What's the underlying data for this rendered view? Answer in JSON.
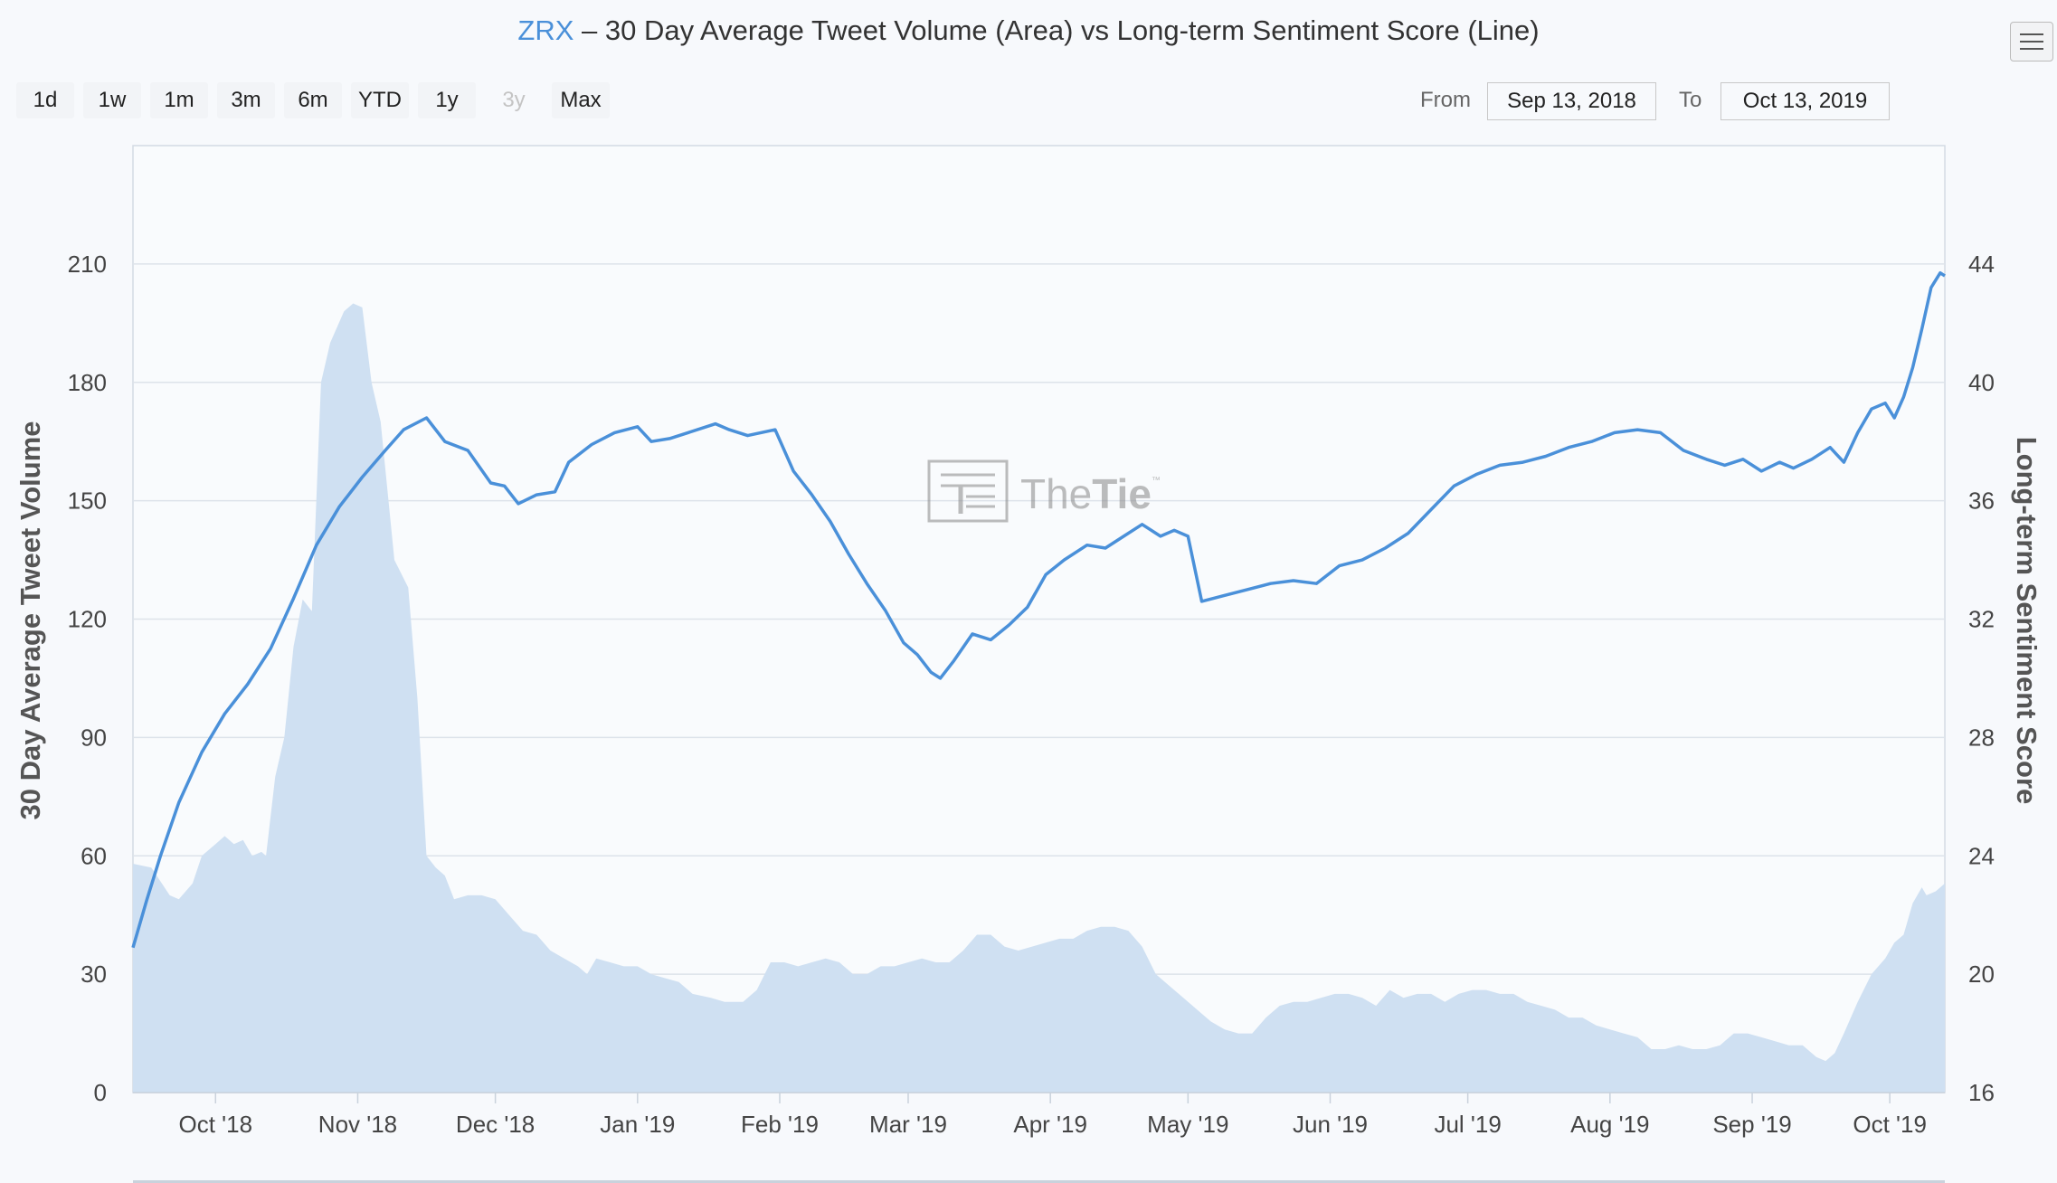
{
  "title": {
    "symbol": "ZRX",
    "rest": " – 30 Day Average Tweet Volume (Area) vs Long-term Sentiment Score (Line)"
  },
  "range_buttons": [
    {
      "label": "1d",
      "enabled": true
    },
    {
      "label": "1w",
      "enabled": true
    },
    {
      "label": "1m",
      "enabled": true
    },
    {
      "label": "3m",
      "enabled": true
    },
    {
      "label": "6m",
      "enabled": true
    },
    {
      "label": "YTD",
      "enabled": true
    },
    {
      "label": "1y",
      "enabled": true
    },
    {
      "label": "3y",
      "enabled": false
    },
    {
      "label": "Max",
      "enabled": true
    }
  ],
  "date_range": {
    "from_label": "From",
    "from_value": "Sep 13, 2018",
    "to_label": "To",
    "to_value": "Oct 13, 2019"
  },
  "menu": {
    "icon": "hamburger-menu-icon"
  },
  "watermark": {
    "text_light": "The",
    "text_bold": "Tie",
    "mark": "™"
  },
  "colors": {
    "line": "#4a90d9",
    "area_fill": "#cfe0f2",
    "grid": "#dde3ea"
  },
  "chart_data": {
    "type": "area+line",
    "x_start": "2018-09-13",
    "x_end": "2019-10-13",
    "x_tick_labels": [
      "Oct '18",
      "Nov '18",
      "Dec '18",
      "Jan '19",
      "Feb '19",
      "Mar '19",
      "Apr '19",
      "May '19",
      "Jun '19",
      "Jul '19",
      "Aug '19",
      "Sep '19",
      "Oct '19"
    ],
    "x_tick_dates": [
      "2018-10-01",
      "2018-11-01",
      "2018-12-01",
      "2019-01-01",
      "2019-02-01",
      "2019-03-01",
      "2019-04-01",
      "2019-05-01",
      "2019-06-01",
      "2019-07-01",
      "2019-08-01",
      "2019-09-01",
      "2019-10-01"
    ],
    "y_left": {
      "label": "30 Day Average Tweet Volume",
      "min": 0,
      "max": 240,
      "ticks": [
        0,
        30,
        60,
        90,
        120,
        150,
        180,
        210
      ]
    },
    "y_right": {
      "label": "Long-term Sentiment Score",
      "min": 16,
      "max": 48,
      "ticks": [
        16,
        20,
        24,
        28,
        32,
        36,
        40,
        44
      ]
    },
    "grid": true,
    "series": [
      {
        "name": "30 Day Average Tweet Volume",
        "type": "area",
        "axis": "left",
        "points": [
          [
            "2018-09-13",
            58
          ],
          [
            "2018-09-17",
            57
          ],
          [
            "2018-09-21",
            50
          ],
          [
            "2018-09-23",
            49
          ],
          [
            "2018-09-26",
            53
          ],
          [
            "2018-09-28",
            60
          ],
          [
            "2018-10-01",
            63
          ],
          [
            "2018-10-03",
            65
          ],
          [
            "2018-10-05",
            63
          ],
          [
            "2018-10-07",
            64
          ],
          [
            "2018-10-09",
            60
          ],
          [
            "2018-10-11",
            61
          ],
          [
            "2018-10-12",
            60
          ],
          [
            "2018-10-14",
            80
          ],
          [
            "2018-10-16",
            90
          ],
          [
            "2018-10-18",
            113
          ],
          [
            "2018-10-20",
            125
          ],
          [
            "2018-10-22",
            122
          ],
          [
            "2018-10-24",
            180
          ],
          [
            "2018-10-26",
            190
          ],
          [
            "2018-10-29",
            198
          ],
          [
            "2018-10-31",
            200
          ],
          [
            "2018-11-02",
            199
          ],
          [
            "2018-11-04",
            180
          ],
          [
            "2018-11-06",
            170
          ],
          [
            "2018-11-09",
            135
          ],
          [
            "2018-11-12",
            128
          ],
          [
            "2018-11-14",
            100
          ],
          [
            "2018-11-16",
            60
          ],
          [
            "2018-11-18",
            57
          ],
          [
            "2018-11-20",
            55
          ],
          [
            "2018-11-22",
            49
          ],
          [
            "2018-11-25",
            50
          ],
          [
            "2018-11-28",
            50
          ],
          [
            "2018-12-01",
            49
          ],
          [
            "2018-12-04",
            45
          ],
          [
            "2018-12-07",
            41
          ],
          [
            "2018-12-10",
            40
          ],
          [
            "2018-12-13",
            36
          ],
          [
            "2018-12-16",
            34
          ],
          [
            "2018-12-19",
            32
          ],
          [
            "2018-12-21",
            30
          ],
          [
            "2018-12-23",
            34
          ],
          [
            "2018-12-26",
            33
          ],
          [
            "2018-12-29",
            32
          ],
          [
            "2019-01-01",
            32
          ],
          [
            "2019-01-04",
            30
          ],
          [
            "2019-01-07",
            29
          ],
          [
            "2019-01-10",
            28
          ],
          [
            "2019-01-13",
            25
          ],
          [
            "2019-01-17",
            24
          ],
          [
            "2019-01-20",
            23
          ],
          [
            "2019-01-24",
            23
          ],
          [
            "2019-01-27",
            26
          ],
          [
            "2019-01-30",
            33
          ],
          [
            "2019-02-02",
            33
          ],
          [
            "2019-02-05",
            32
          ],
          [
            "2019-02-08",
            33
          ],
          [
            "2019-02-11",
            34
          ],
          [
            "2019-02-14",
            33
          ],
          [
            "2019-02-17",
            30
          ],
          [
            "2019-02-20",
            30
          ],
          [
            "2019-02-23",
            32
          ],
          [
            "2019-02-26",
            32
          ],
          [
            "2019-03-01",
            33
          ],
          [
            "2019-03-04",
            34
          ],
          [
            "2019-03-07",
            33
          ],
          [
            "2019-03-10",
            33
          ],
          [
            "2019-03-13",
            36
          ],
          [
            "2019-03-16",
            40
          ],
          [
            "2019-03-19",
            40
          ],
          [
            "2019-03-22",
            37
          ],
          [
            "2019-03-25",
            36
          ],
          [
            "2019-03-28",
            37
          ],
          [
            "2019-03-31",
            38
          ],
          [
            "2019-04-03",
            39
          ],
          [
            "2019-04-06",
            39
          ],
          [
            "2019-04-09",
            41
          ],
          [
            "2019-04-12",
            42
          ],
          [
            "2019-04-15",
            42
          ],
          [
            "2019-04-18",
            41
          ],
          [
            "2019-04-21",
            37
          ],
          [
            "2019-04-24",
            30
          ],
          [
            "2019-04-27",
            27
          ],
          [
            "2019-04-30",
            24
          ],
          [
            "2019-05-03",
            21
          ],
          [
            "2019-05-06",
            18
          ],
          [
            "2019-05-09",
            16
          ],
          [
            "2019-05-12",
            15
          ],
          [
            "2019-05-15",
            15
          ],
          [
            "2019-05-18",
            19
          ],
          [
            "2019-05-21",
            22
          ],
          [
            "2019-05-24",
            23
          ],
          [
            "2019-05-27",
            23
          ],
          [
            "2019-05-30",
            24
          ],
          [
            "2019-06-02",
            25
          ],
          [
            "2019-06-05",
            25
          ],
          [
            "2019-06-08",
            24
          ],
          [
            "2019-06-11",
            22
          ],
          [
            "2019-06-14",
            26
          ],
          [
            "2019-06-17",
            24
          ],
          [
            "2019-06-20",
            25
          ],
          [
            "2019-06-23",
            25
          ],
          [
            "2019-06-26",
            23
          ],
          [
            "2019-06-29",
            25
          ],
          [
            "2019-07-02",
            26
          ],
          [
            "2019-07-05",
            26
          ],
          [
            "2019-07-08",
            25
          ],
          [
            "2019-07-11",
            25
          ],
          [
            "2019-07-14",
            23
          ],
          [
            "2019-07-17",
            22
          ],
          [
            "2019-07-20",
            21
          ],
          [
            "2019-07-23",
            19
          ],
          [
            "2019-07-26",
            19
          ],
          [
            "2019-07-29",
            17
          ],
          [
            "2019-08-01",
            16
          ],
          [
            "2019-08-04",
            15
          ],
          [
            "2019-08-07",
            14
          ],
          [
            "2019-08-10",
            11
          ],
          [
            "2019-08-13",
            11
          ],
          [
            "2019-08-16",
            12
          ],
          [
            "2019-08-19",
            11
          ],
          [
            "2019-08-22",
            11
          ],
          [
            "2019-08-25",
            12
          ],
          [
            "2019-08-28",
            15
          ],
          [
            "2019-08-31",
            15
          ],
          [
            "2019-09-03",
            14
          ],
          [
            "2019-09-06",
            13
          ],
          [
            "2019-09-09",
            12
          ],
          [
            "2019-09-12",
            12
          ],
          [
            "2019-09-15",
            9
          ],
          [
            "2019-09-17",
            8
          ],
          [
            "2019-09-19",
            10
          ],
          [
            "2019-09-21",
            15
          ],
          [
            "2019-09-24",
            23
          ],
          [
            "2019-09-27",
            30
          ],
          [
            "2019-09-30",
            34
          ],
          [
            "2019-10-02",
            38
          ],
          [
            "2019-10-04",
            40
          ],
          [
            "2019-10-06",
            48
          ],
          [
            "2019-10-08",
            52
          ],
          [
            "2019-10-09",
            50
          ],
          [
            "2019-10-11",
            51
          ],
          [
            "2019-10-13",
            53
          ]
        ]
      },
      {
        "name": "Long-term Sentiment Score",
        "type": "line",
        "axis": "right",
        "points": [
          [
            "2018-09-13",
            20.9
          ],
          [
            "2018-09-16",
            22.5
          ],
          [
            "2018-09-19",
            24.0
          ],
          [
            "2018-09-23",
            25.8
          ],
          [
            "2018-09-28",
            27.5
          ],
          [
            "2018-10-03",
            28.8
          ],
          [
            "2018-10-08",
            29.8
          ],
          [
            "2018-10-13",
            31.0
          ],
          [
            "2018-10-18",
            32.7
          ],
          [
            "2018-10-23",
            34.5
          ],
          [
            "2018-10-28",
            35.8
          ],
          [
            "2018-11-02",
            36.8
          ],
          [
            "2018-11-07",
            37.7
          ],
          [
            "2018-11-11",
            38.4
          ],
          [
            "2018-11-16",
            38.8
          ],
          [
            "2018-11-20",
            38.0
          ],
          [
            "2018-11-25",
            37.7
          ],
          [
            "2018-11-30",
            36.6
          ],
          [
            "2018-12-03",
            36.5
          ],
          [
            "2018-12-06",
            35.9
          ],
          [
            "2018-12-10",
            36.2
          ],
          [
            "2018-12-14",
            36.3
          ],
          [
            "2018-12-17",
            37.3
          ],
          [
            "2018-12-22",
            37.9
          ],
          [
            "2018-12-27",
            38.3
          ],
          [
            "2019-01-01",
            38.5
          ],
          [
            "2019-01-04",
            38.0
          ],
          [
            "2019-01-08",
            38.1
          ],
          [
            "2019-01-12",
            38.3
          ],
          [
            "2019-01-18",
            38.6
          ],
          [
            "2019-01-21",
            38.4
          ],
          [
            "2019-01-25",
            38.2
          ],
          [
            "2019-01-31",
            38.4
          ],
          [
            "2019-02-04",
            37.0
          ],
          [
            "2019-02-08",
            36.2
          ],
          [
            "2019-02-12",
            35.3
          ],
          [
            "2019-02-16",
            34.2
          ],
          [
            "2019-02-20",
            33.2
          ],
          [
            "2019-02-24",
            32.3
          ],
          [
            "2019-02-28",
            31.2
          ],
          [
            "2019-03-03",
            30.8
          ],
          [
            "2019-03-06",
            30.2
          ],
          [
            "2019-03-08",
            30.0
          ],
          [
            "2019-03-11",
            30.6
          ],
          [
            "2019-03-15",
            31.5
          ],
          [
            "2019-03-19",
            31.3
          ],
          [
            "2019-03-23",
            31.8
          ],
          [
            "2019-03-27",
            32.4
          ],
          [
            "2019-03-31",
            33.5
          ],
          [
            "2019-04-04",
            34.0
          ],
          [
            "2019-04-09",
            34.5
          ],
          [
            "2019-04-13",
            34.4
          ],
          [
            "2019-04-17",
            34.8
          ],
          [
            "2019-04-21",
            35.2
          ],
          [
            "2019-04-25",
            34.8
          ],
          [
            "2019-04-28",
            35.0
          ],
          [
            "2019-05-01",
            34.8
          ],
          [
            "2019-05-04",
            32.6
          ],
          [
            "2019-05-09",
            32.8
          ],
          [
            "2019-05-14",
            33.0
          ],
          [
            "2019-05-19",
            33.2
          ],
          [
            "2019-05-24",
            33.3
          ],
          [
            "2019-05-29",
            33.2
          ],
          [
            "2019-06-03",
            33.8
          ],
          [
            "2019-06-08",
            34.0
          ],
          [
            "2019-06-13",
            34.4
          ],
          [
            "2019-06-18",
            34.9
          ],
          [
            "2019-06-23",
            35.7
          ],
          [
            "2019-06-28",
            36.5
          ],
          [
            "2019-07-03",
            36.9
          ],
          [
            "2019-07-08",
            37.2
          ],
          [
            "2019-07-13",
            37.3
          ],
          [
            "2019-07-18",
            37.5
          ],
          [
            "2019-07-23",
            37.8
          ],
          [
            "2019-07-28",
            38.0
          ],
          [
            "2019-08-02",
            38.3
          ],
          [
            "2019-08-07",
            38.4
          ],
          [
            "2019-08-12",
            38.3
          ],
          [
            "2019-08-17",
            37.7
          ],
          [
            "2019-08-22",
            37.4
          ],
          [
            "2019-08-26",
            37.2
          ],
          [
            "2019-08-30",
            37.4
          ],
          [
            "2019-09-03",
            37.0
          ],
          [
            "2019-09-07",
            37.3
          ],
          [
            "2019-09-10",
            37.1
          ],
          [
            "2019-09-14",
            37.4
          ],
          [
            "2019-09-18",
            37.8
          ],
          [
            "2019-09-21",
            37.3
          ],
          [
            "2019-09-24",
            38.3
          ],
          [
            "2019-09-27",
            39.1
          ],
          [
            "2019-09-30",
            39.3
          ],
          [
            "2019-10-02",
            38.8
          ],
          [
            "2019-10-04",
            39.5
          ],
          [
            "2019-10-06",
            40.5
          ],
          [
            "2019-10-08",
            41.8
          ],
          [
            "2019-10-10",
            43.2
          ],
          [
            "2019-10-12",
            43.7
          ],
          [
            "2019-10-13",
            43.6
          ]
        ]
      }
    ]
  }
}
